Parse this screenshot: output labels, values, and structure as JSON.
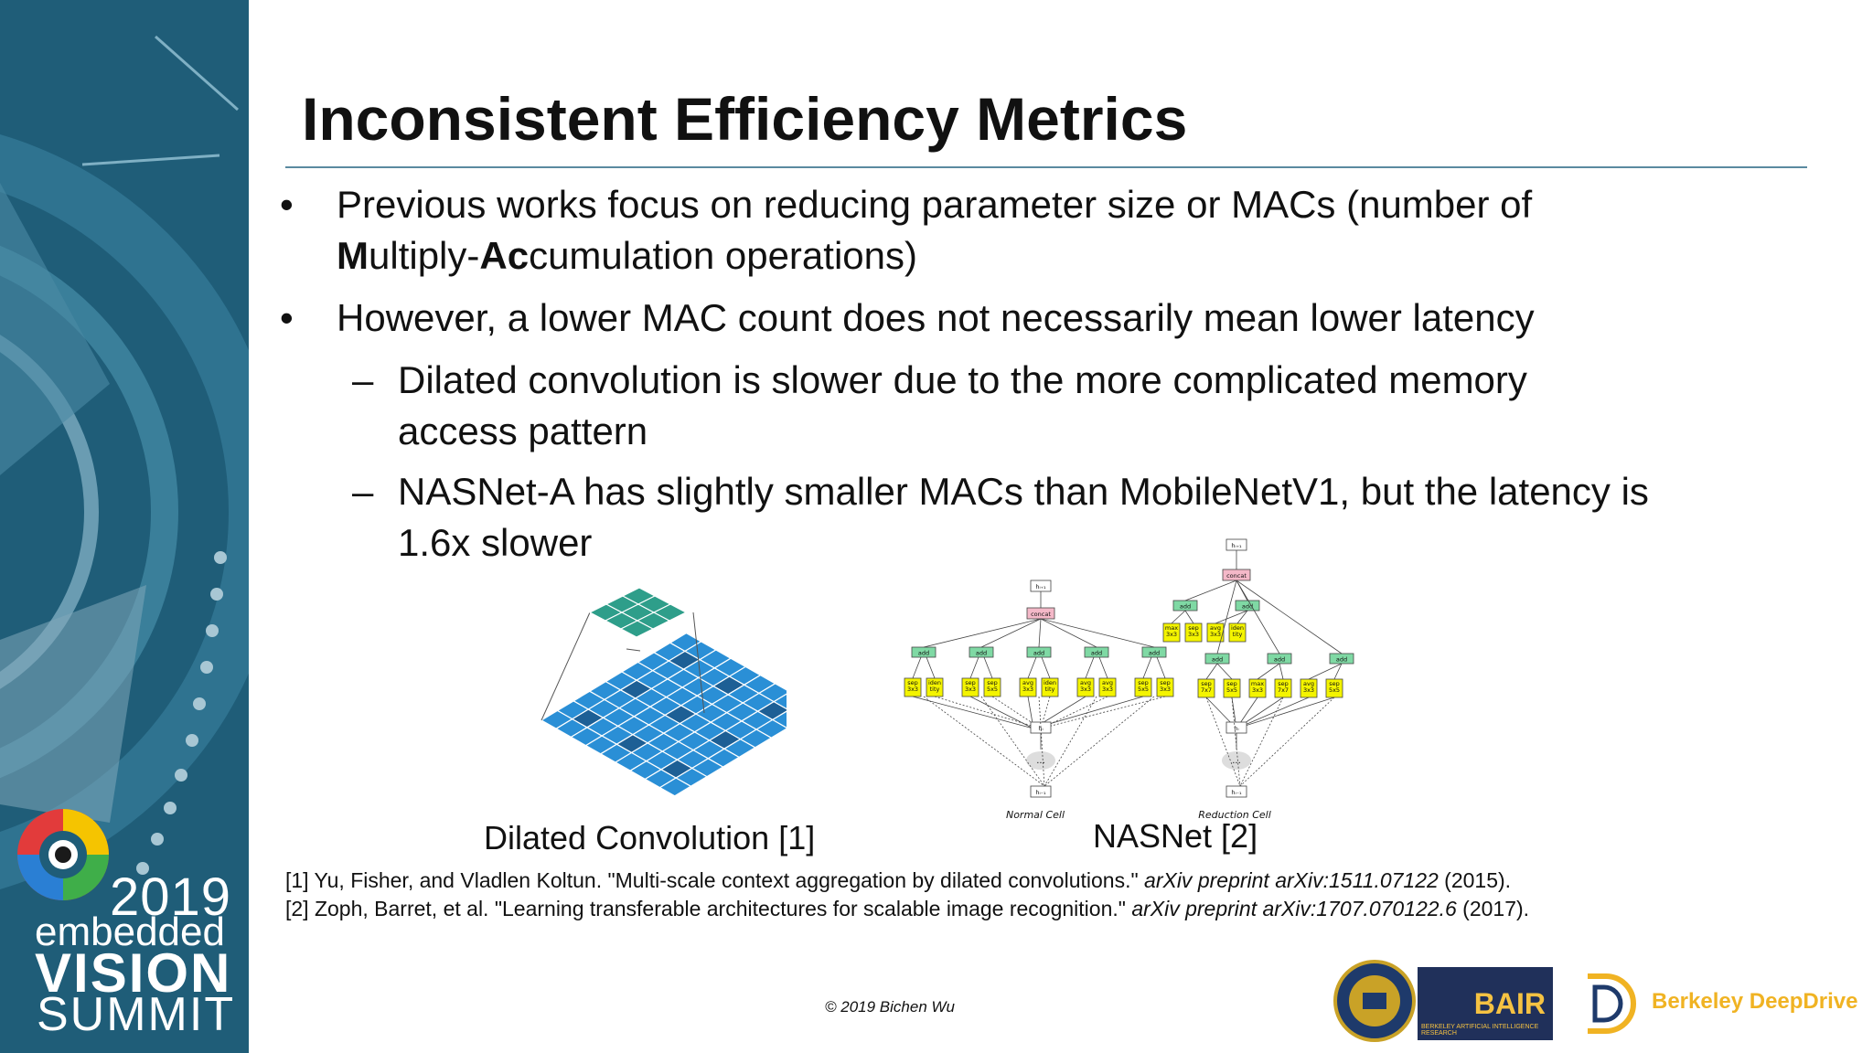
{
  "slide": {
    "title": "Inconsistent Efficiency Metrics",
    "bullets": [
      {
        "level": 1,
        "marker": "•",
        "segments": [
          {
            "t": "Previous works focus on reducing parameter size or MACs (number of "
          },
          {
            "t": "M",
            "b": true
          },
          {
            "t": "ultiply-"
          },
          {
            "t": "Ac",
            "b": true
          },
          {
            "t": "cumulation operations)"
          }
        ]
      },
      {
        "level": 1,
        "marker": "•",
        "segments": [
          {
            "t": "However, a lower MAC count does not necessarily mean lower latency"
          }
        ]
      },
      {
        "level": 2,
        "marker": "–",
        "segments": [
          {
            "t": "Dilated convolution is slower due to the more complicated memory access pattern"
          }
        ]
      },
      {
        "level": 2,
        "marker": "–",
        "segments": [
          {
            "t": "NASNet-A has slightly smaller MACs than MobileNetV1, but the latency is 1.6x slower"
          }
        ]
      }
    ]
  },
  "figures": {
    "dilated_caption": "Dilated Convolution [1]",
    "nasnet_caption": "NASNet [2]",
    "normal_cell_label": "Normal Cell",
    "reduction_cell_label": "Reduction Cell",
    "node_top": "hᵢ₊₁",
    "node_hi": "hᵢ",
    "node_hprev": "hᵢ₋₁",
    "concat": "concat",
    "add": "add",
    "dots": "...",
    "normal_ops": [
      "sep 3x3",
      "iden tity",
      "sep 3x3",
      "sep 5x5",
      "avg 3x3",
      "iden tity",
      "avg 3x3",
      "avg 3x3",
      "sep 5x5",
      "sep 3x3"
    ],
    "reduction_ops_top": [
      "max 3x3",
      "sep 3x3",
      "avg 3x3",
      "iden tity"
    ],
    "reduction_ops_bottom": [
      "sep 7x7",
      "sep 5x5",
      "max 3x3",
      "sep 7x7",
      "avg 3x3",
      "sep 5x5"
    ]
  },
  "references": [
    {
      "pre": "[1] Yu, Fisher, and Vladlen Koltun. \"Multi-scale context aggregation by dilated convolutions.\" ",
      "it": "arXiv preprint arXiv:1511.07122",
      "post": " (2015)."
    },
    {
      "pre": "[2] Zoph, Barret, et al. \"Learning transferable architectures for scalable image recognition.\" ",
      "it": "arXiv preprint arXiv:1707.070122.6",
      "post": " (2017)."
    }
  ],
  "footer": {
    "copyright": "© 2019 Bichen Wu",
    "bair": "BAIR",
    "bair_sub": "BERKELEY ARTIFICIAL INTELLIGENCE RESEARCH",
    "deepdrive": "Berkeley DeepDrive"
  },
  "summit": {
    "year": "2019",
    "line1": "embedded",
    "line2": "VISION",
    "line3": "SUMMIT"
  },
  "colors": {
    "sidebar": "#1f5d78",
    "op_yellow": "#f4f400",
    "add_green": "#7fd9a4",
    "concat_pink": "#f4b8c8",
    "grid_blue": "#2a8fd6",
    "teal": "#2e9e8a",
    "bdd_gold": "#f0b323"
  }
}
